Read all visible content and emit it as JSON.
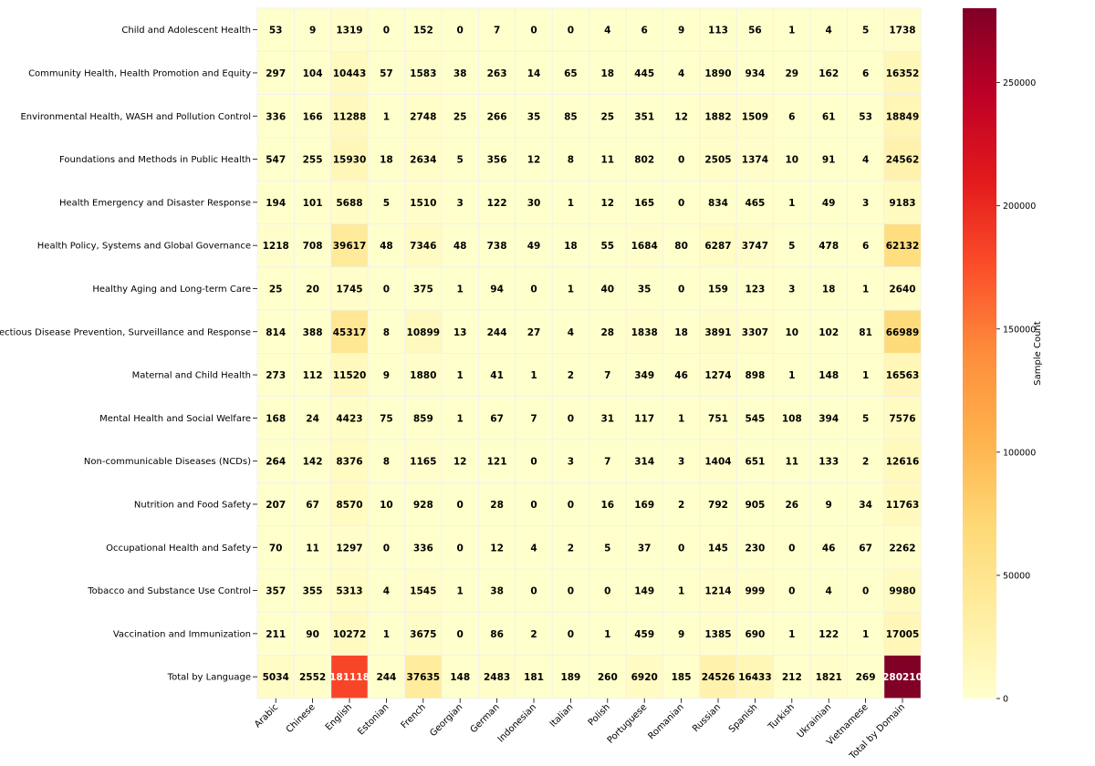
{
  "chart_data": {
    "type": "heatmap",
    "title": "",
    "xlabel": "",
    "ylabel": "",
    "rows": [
      "Child and Adolescent Health",
      "Community Health, Health Promotion and Equity",
      "Environmental Health, WASH and Pollution Control",
      "Foundations and Methods in Public Health",
      "Health Emergency and Disaster Response",
      "Health Policy, Systems and Global Governance",
      "Healthy Aging and Long-term Care",
      "Infectious Disease Prevention, Surveillance and Response",
      "Maternal and Child Health",
      "Mental Health and Social Welfare",
      "Non-communicable Diseases (NCDs)",
      "Nutrition and Food Safety",
      "Occupational Health and Safety",
      "Tobacco and Substance Use Control",
      "Vaccination and Immunization",
      "Total by Language"
    ],
    "columns": [
      "Arabic",
      "Chinese",
      "English",
      "Estonian",
      "French",
      "Georgian",
      "German",
      "Indonesian",
      "Italian",
      "Polish",
      "Portuguese",
      "Romanian",
      "Russian",
      "Spanish",
      "Turkish",
      "Ukrainian",
      "Vietnamese",
      "Total by Domain"
    ],
    "values": [
      [
        53,
        9,
        1319,
        0,
        152,
        0,
        7,
        0,
        0,
        4,
        6,
        9,
        113,
        56,
        1,
        4,
        5,
        1738
      ],
      [
        297,
        104,
        10443,
        57,
        1583,
        38,
        263,
        14,
        65,
        18,
        445,
        4,
        1890,
        934,
        29,
        162,
        6,
        16352
      ],
      [
        336,
        166,
        11288,
        1,
        2748,
        25,
        266,
        35,
        85,
        25,
        351,
        12,
        1882,
        1509,
        6,
        61,
        53,
        18849
      ],
      [
        547,
        255,
        15930,
        18,
        2634,
        5,
        356,
        12,
        8,
        11,
        802,
        0,
        2505,
        1374,
        10,
        91,
        4,
        24562
      ],
      [
        194,
        101,
        5688,
        5,
        1510,
        3,
        122,
        30,
        1,
        12,
        165,
        0,
        834,
        465,
        1,
        49,
        3,
        9183
      ],
      [
        1218,
        708,
        39617,
        48,
        7346,
        48,
        738,
        49,
        18,
        55,
        1684,
        80,
        6287,
        3747,
        5,
        478,
        6,
        62132
      ],
      [
        25,
        20,
        1745,
        0,
        375,
        1,
        94,
        0,
        1,
        40,
        35,
        0,
        159,
        123,
        3,
        18,
        1,
        2640
      ],
      [
        814,
        388,
        45317,
        8,
        10899,
        13,
        244,
        27,
        4,
        28,
        1838,
        18,
        3891,
        3307,
        10,
        102,
        81,
        66989
      ],
      [
        273,
        112,
        11520,
        9,
        1880,
        1,
        41,
        1,
        2,
        7,
        349,
        46,
        1274,
        898,
        1,
        148,
        1,
        16563
      ],
      [
        168,
        24,
        4423,
        75,
        859,
        1,
        67,
        7,
        0,
        31,
        117,
        1,
        751,
        545,
        108,
        394,
        5,
        7576
      ],
      [
        264,
        142,
        8376,
        8,
        1165,
        12,
        121,
        0,
        3,
        7,
        314,
        3,
        1404,
        651,
        11,
        133,
        2,
        12616
      ],
      [
        207,
        67,
        8570,
        10,
        928,
        0,
        28,
        0,
        0,
        16,
        169,
        2,
        792,
        905,
        26,
        9,
        34,
        11763
      ],
      [
        70,
        11,
        1297,
        0,
        336,
        0,
        12,
        4,
        2,
        5,
        37,
        0,
        145,
        230,
        0,
        46,
        67,
        2262
      ],
      [
        357,
        355,
        5313,
        4,
        1545,
        1,
        38,
        0,
        0,
        0,
        149,
        1,
        1214,
        999,
        0,
        4,
        0,
        9980
      ],
      [
        211,
        90,
        10272,
        1,
        3675,
        0,
        86,
        2,
        0,
        1,
        459,
        9,
        1385,
        690,
        1,
        122,
        1,
        17005
      ],
      [
        5034,
        2552,
        181118,
        244,
        37635,
        148,
        2483,
        181,
        189,
        260,
        6920,
        185,
        24526,
        16433,
        212,
        1821,
        269,
        280210
      ]
    ],
    "colorbar": {
      "label": "Sample Count",
      "min": 0,
      "max": 280210,
      "ticks": [
        0,
        50000,
        100000,
        150000,
        200000,
        250000
      ],
      "colormap": "YlOrRd",
      "stops": [
        "#ffffcc",
        "#ffeda0",
        "#fed976",
        "#feb24c",
        "#fd8d3c",
        "#fc4e2a",
        "#e31a1c",
        "#bd0026",
        "#800026"
      ]
    }
  }
}
